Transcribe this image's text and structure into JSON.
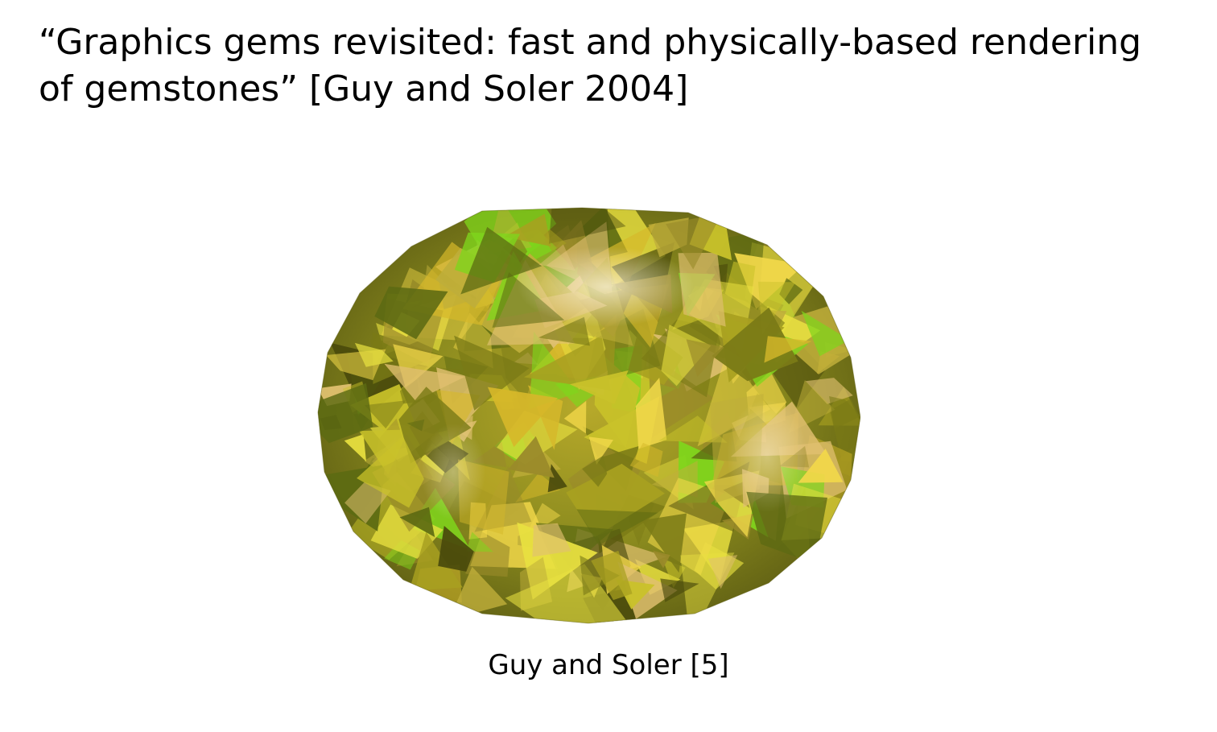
{
  "slide": {
    "title": "“Graphics gems revisited: fast and physically-based rendering of gemstones” [Guy and Soler 2004]",
    "caption": "Guy and Soler [5]"
  },
  "figure": {
    "subject": "gemstone-render",
    "colors": {
      "base": "#8a8a1e",
      "dark": "#3a3a0a",
      "bright": "#e8e040",
      "highlight": "#fff8e0",
      "green": "#7fd61c"
    }
  }
}
